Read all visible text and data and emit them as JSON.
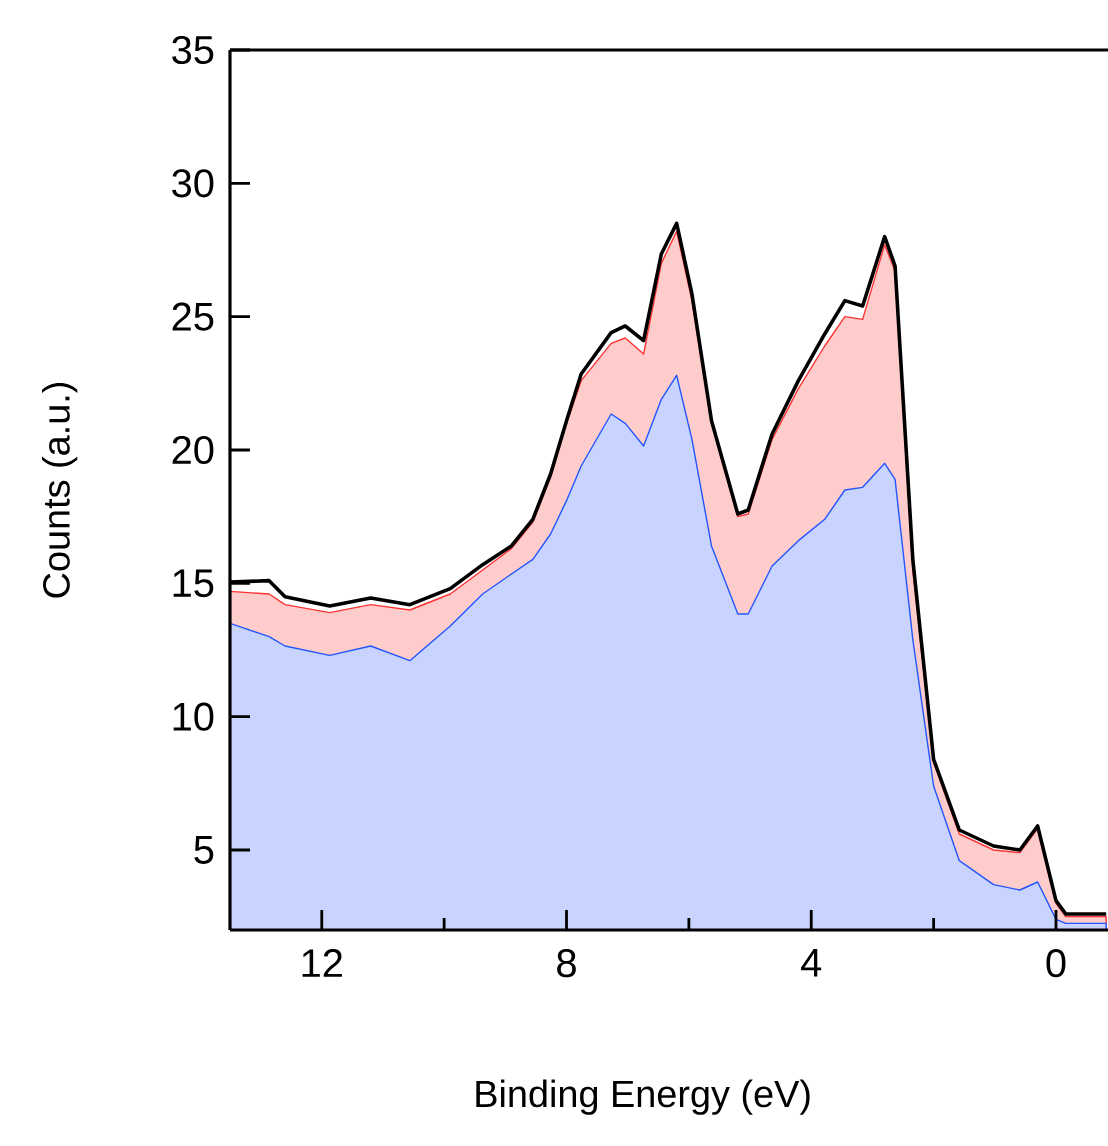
{
  "chart_data": {
    "type": "area",
    "xlabel": "Binding Energy (eV)",
    "ylabel": "Counts (a.u.)",
    "x": [
      13.5,
      12.86,
      12.6,
      11.87,
      11.2,
      10.56,
      9.9,
      9.37,
      8.9,
      8.55,
      8.26,
      8.0,
      7.76,
      7.27,
      7.04,
      6.74,
      6.45,
      6.2,
      5.95,
      5.63,
      5.2,
      5.03,
      4.64,
      4.21,
      3.78,
      3.45,
      3.16,
      2.8,
      2.63,
      2.34,
      2.0,
      1.58,
      1.02,
      0.59,
      0.3,
      0.0,
      -0.16,
      -0.82
    ],
    "series": [
      {
        "color": "#ff3333",
        "values": [
          14.7,
          14.6,
          14.2,
          13.9,
          14.2,
          14.0,
          14.6,
          15.5,
          16.3,
          17.3,
          19.0,
          21.0,
          22.6,
          24.0,
          24.2,
          23.6,
          27.0,
          28.2,
          25.6,
          21.0,
          17.5,
          17.6,
          20.4,
          22.3,
          23.9,
          25.0,
          24.9,
          27.7,
          26.7,
          15.5,
          8.3,
          5.6,
          5.0,
          4.9,
          5.8,
          3.0,
          2.5,
          2.5
        ]
      },
      {
        "color": "#2255ff",
        "values": [
          13.5,
          13.0,
          12.65,
          12.3,
          12.65,
          12.1,
          13.4,
          14.6,
          15.35,
          15.9,
          16.85,
          18.1,
          19.4,
          21.35,
          21.0,
          20.15,
          21.9,
          22.8,
          20.4,
          16.4,
          13.85,
          13.85,
          15.65,
          16.6,
          17.4,
          18.5,
          18.6,
          19.5,
          18.9,
          12.9,
          7.4,
          4.6,
          3.7,
          3.5,
          3.8,
          2.4,
          2.25,
          2.25
        ]
      },
      {
        "type": "line",
        "color": "#000000",
        "values": [
          15.05,
          15.1,
          14.5,
          14.15,
          14.45,
          14.2,
          14.8,
          15.7,
          16.4,
          17.4,
          19.1,
          21.1,
          22.85,
          24.4,
          24.65,
          24.1,
          27.35,
          28.5,
          25.85,
          21.1,
          17.6,
          17.75,
          20.6,
          22.6,
          24.35,
          25.6,
          25.4,
          28.0,
          26.9,
          15.9,
          8.4,
          5.75,
          5.15,
          5.0,
          5.9,
          3.1,
          2.6,
          2.6
        ]
      }
    ],
    "xlim": [
      13.5,
      -0.85
    ],
    "ylim": [
      2,
      35
    ],
    "xticks": [
      12,
      {
        "value": 10,
        "label": null
      },
      8,
      {
        "value": 6,
        "label": null
      },
      4,
      {
        "value": 2,
        "label": null
      },
      0
    ],
    "yticks": [
      5,
      10,
      15,
      20,
      25,
      30,
      35
    ]
  }
}
